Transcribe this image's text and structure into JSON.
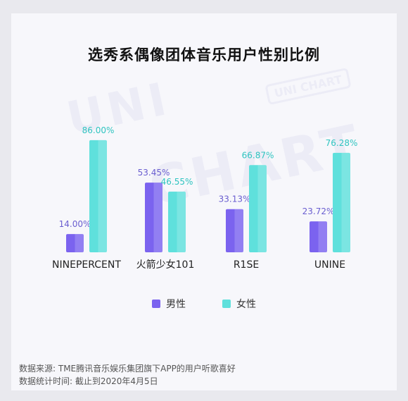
{
  "colors": {
    "male": "#7b63ef",
    "female": "#5fe0dc",
    "background": "#f7f7fb"
  },
  "watermark": {
    "line1": "UNI",
    "line2": "CHART",
    "badge": "UNI CHART"
  },
  "chart_data": {
    "type": "bar",
    "title": "选秀系偶像团体音乐用户性别比例",
    "categories": [
      "NINEPERCENT",
      "火箭少女101",
      "R1SE",
      "UNINE"
    ],
    "series": [
      {
        "name": "男性",
        "values": [
          14.0,
          53.45,
          33.13,
          23.72
        ],
        "labels": [
          "14.00%",
          "53.45%",
          "33.13%",
          "23.72%"
        ]
      },
      {
        "name": "女性",
        "values": [
          86.0,
          46.55,
          66.87,
          76.28
        ],
        "labels": [
          "86.00%",
          "46.55%",
          "66.87%",
          "76.28%"
        ]
      }
    ],
    "ylim": [
      0,
      100
    ],
    "grid": false,
    "legend": "bottom-center"
  },
  "source": {
    "line1": "数据来源: TME腾讯音乐娱乐集团旗下APP的用户听歌喜好",
    "line2": "数据统计时间: 截止到2020年4月5日"
  }
}
